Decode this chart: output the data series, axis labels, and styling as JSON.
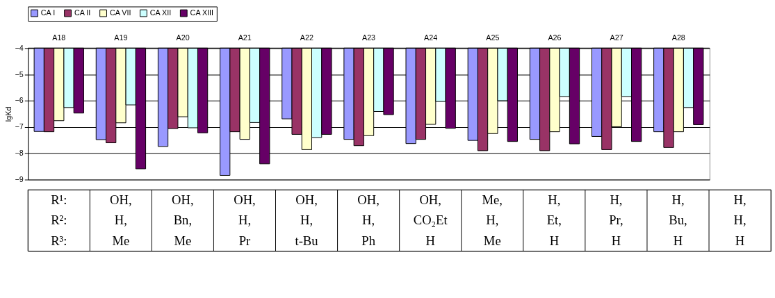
{
  "chart_data": {
    "type": "bar",
    "ylabel": "lgKd",
    "categories": [
      "A18",
      "A19",
      "A20",
      "A21",
      "A22",
      "A23",
      "A24",
      "A25",
      "A26",
      "A27",
      "A28"
    ],
    "series": [
      {
        "name": "CA I",
        "color": "#9999ff",
        "values": [
          -7.17,
          -7.48,
          -7.74,
          -8.84,
          -6.69,
          -7.47,
          -7.63,
          -7.51,
          -7.47,
          -7.36,
          -7.18
        ]
      },
      {
        "name": "CA II",
        "color": "#993366",
        "values": [
          -7.18,
          -7.6,
          -7.06,
          -7.18,
          -7.28,
          -7.71,
          -7.47,
          -7.9,
          -7.9,
          -7.86,
          -7.78
        ]
      },
      {
        "name": "CA VII",
        "color": "#ffffcc",
        "values": [
          -6.76,
          -6.84,
          -6.61,
          -7.47,
          -7.86,
          -7.33,
          -6.9,
          -7.25,
          -7.18,
          -6.99,
          -7.18
        ]
      },
      {
        "name": "CA XII",
        "color": "#ccffff",
        "values": [
          -6.26,
          -6.16,
          -7.03,
          -6.83,
          -7.4,
          -6.41,
          -6.03,
          -6.0,
          -5.84,
          -5.84,
          -6.26
        ]
      },
      {
        "name": "CA XIII",
        "color": "#660066",
        "values": [
          -6.47,
          -8.59,
          -7.22,
          -8.4,
          -7.28,
          -6.53,
          -7.05,
          -7.55,
          -7.64,
          -7.55,
          -6.91
        ]
      }
    ],
    "ylim": [
      -9,
      -4
    ],
    "yticks": [
      -9,
      -8,
      -7,
      -6,
      -5,
      -4
    ],
    "grid": "y",
    "legend": "top",
    "annotations": [
      "R¹:",
      "OH,",
      "OH,",
      "OH,",
      "OH,",
      "OH,",
      "OH,",
      "Me,",
      "H,",
      "H,",
      "H,",
      "H,",
      "R²:",
      "H,",
      "Bn,",
      "H,",
      "H,",
      "H,",
      "CO₂Et",
      "H,",
      "Et,",
      "Pr,",
      "Bu,",
      "H,",
      "R³:",
      "Me",
      "Me",
      "Pr",
      "t-Bu",
      "Ph",
      "H",
      "Me",
      "H",
      "H",
      "H",
      "H"
    ]
  }
}
